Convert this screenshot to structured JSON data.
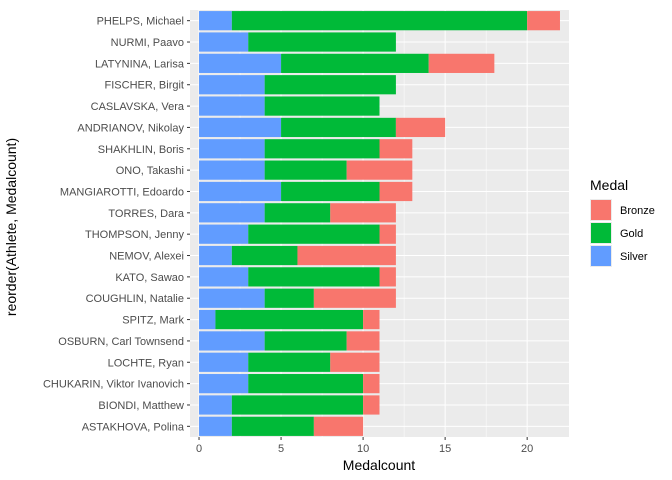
{
  "chart_data": {
    "type": "bar",
    "orientation": "horizontal",
    "stacked": true,
    "xlabel": "Medalcount",
    "ylabel": "reorder(Athlete, Medalcount)",
    "xlim": [
      0,
      22
    ],
    "x_ticks": [
      0,
      5,
      10,
      15,
      20
    ],
    "grid": true,
    "legend": {
      "title": "Medal",
      "position": "right",
      "entries": [
        {
          "name": "Bronze",
          "color": "#F8766D"
        },
        {
          "name": "Gold",
          "color": "#00BA38"
        },
        {
          "name": "Silver",
          "color": "#619CFF"
        }
      ]
    },
    "stack_order": [
      "Silver",
      "Gold",
      "Bronze"
    ],
    "categories": [
      "PHELPS, Michael",
      "NURMI, Paavo",
      "LATYNINA, Larisa",
      "FISCHER, Birgit",
      "CASLAVSKA, Vera",
      "ANDRIANOV, Nikolay",
      "SHAKHLIN, Boris",
      "ONO, Takashi",
      "MANGIAROTTI, Edoardo",
      "TORRES, Dara",
      "THOMPSON, Jenny",
      "NEMOV, Alexei",
      "KATO, Sawao",
      "COUGHLIN, Natalie",
      "SPITZ, Mark",
      "OSBURN, Carl Townsend",
      "LOCHTE, Ryan",
      "CHUKARIN, Viktor Ivanovich",
      "BIONDI, Matthew",
      "ASTAKHOVA, Polina"
    ],
    "series": [
      {
        "name": "Silver",
        "color": "#619CFF",
        "values": [
          2,
          3,
          5,
          4,
          4,
          5,
          4,
          4,
          5,
          4,
          3,
          2,
          3,
          4,
          1,
          4,
          3,
          3,
          2,
          2
        ]
      },
      {
        "name": "Gold",
        "color": "#00BA38",
        "values": [
          18,
          9,
          9,
          8,
          7,
          7,
          7,
          5,
          6,
          4,
          8,
          4,
          8,
          3,
          9,
          5,
          5,
          7,
          8,
          5
        ]
      },
      {
        "name": "Bronze",
        "color": "#F8766D",
        "values": [
          2,
          0,
          4,
          0,
          0,
          3,
          2,
          4,
          2,
          4,
          1,
          6,
          1,
          5,
          1,
          2,
          3,
          1,
          1,
          3
        ]
      }
    ]
  },
  "style": {
    "panel_background": "#EBEBEB",
    "grid_major": "#FFFFFF",
    "tick_color": "#333333"
  }
}
